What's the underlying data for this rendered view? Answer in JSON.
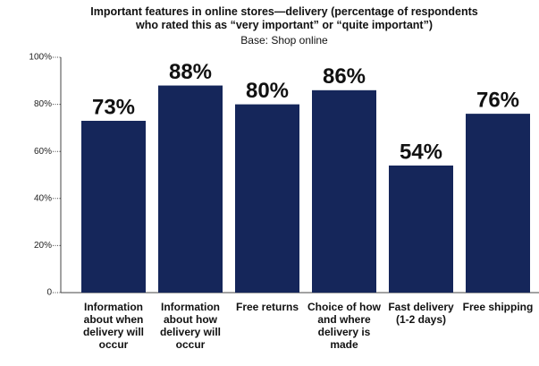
{
  "chart_data": {
    "type": "bar",
    "title": "Important features in online stores—delivery (percentage of respondents who rated this as “very important” or “quite important”)",
    "subtitle": "Base: Shop online",
    "categories": [
      "Information about when delivery will occur",
      "Information about how delivery will occur",
      "Free returns",
      "Choice of how and where delivery is made",
      "Fast delivery (1-2 days)",
      "Free shipping"
    ],
    "values": [
      73,
      88,
      80,
      86,
      54,
      76
    ],
    "value_labels": [
      "73%",
      "88%",
      "80%",
      "86%",
      "54%",
      "76%"
    ],
    "color": "#15265a",
    "ylim": [
      0,
      100
    ],
    "yticks": [
      0,
      {
        "value": 20,
        "label": "20%"
      },
      {
        "value": 40,
        "label": "40%"
      },
      {
        "value": 60,
        "label": "60%"
      },
      {
        "value": 80,
        "label": "80%"
      },
      {
        "value": 100,
        "label": "100%"
      }
    ]
  }
}
